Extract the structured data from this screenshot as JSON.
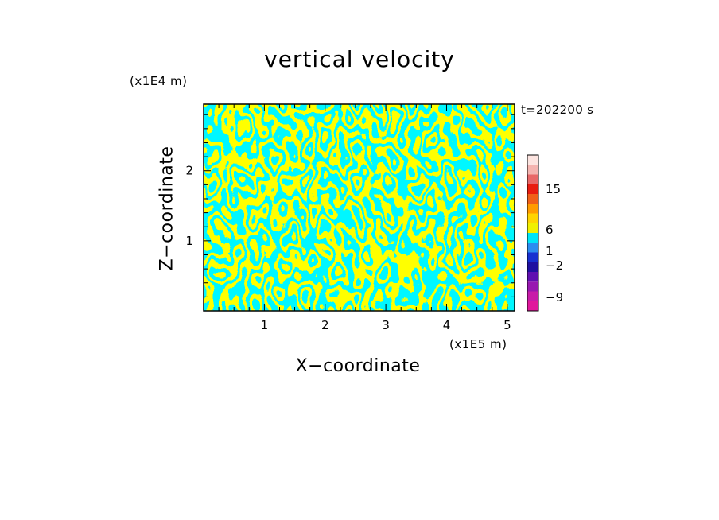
{
  "chart_data": {
    "type": "heatmap",
    "title": "vertical velocity",
    "xlabel": "X−coordinate",
    "ylabel": "Z−coordinate",
    "x_unit_label": "(x1E5 m)",
    "y_unit_label": "(x1E4 m)",
    "timestamp": "t=202200 s",
    "xlim": [
      0,
      5.12
    ],
    "ylim": [
      0,
      2.95
    ],
    "x_ticks": [
      "1",
      "2",
      "3",
      "4",
      "5"
    ],
    "y_ticks": [
      "1",
      "2"
    ],
    "colorbar": {
      "tick_labels": [
        "15",
        "6",
        "1",
        "−2",
        "−9"
      ],
      "levels": [
        {
          "color": "#e0189c"
        },
        {
          "color": "#c81ca8"
        },
        {
          "color": "#9818b0"
        },
        {
          "color": "#6010b0"
        },
        {
          "color": "#2010a0"
        },
        {
          "color": "#1830d0"
        },
        {
          "color": "#2c8cf0"
        },
        {
          "color": "#00e4f8"
        },
        {
          "color": "#f0f000"
        },
        {
          "color": "#ffd400"
        },
        {
          "color": "#ff9c00"
        },
        {
          "color": "#f06018"
        },
        {
          "color": "#e81c10"
        },
        {
          "color": "#e86868"
        },
        {
          "color": "#f4b4b0"
        },
        {
          "color": "#fce4e0"
        }
      ]
    },
    "field_colors": {
      "positive": "#ffff00",
      "negative": "#00eeff"
    }
  }
}
